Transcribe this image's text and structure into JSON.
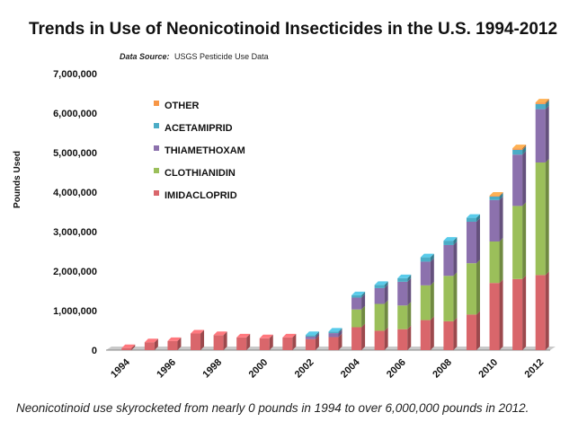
{
  "chart_data": {
    "type": "bar",
    "stacked": true,
    "title": "Trends in Use of Neonicotinoid Insecticides in the U.S. 1994-2012",
    "source_label": "Data Source:",
    "source_text": "USGS Pesticide Use Data",
    "ylabel": "Pounds Used",
    "ylim": [
      0,
      7000000
    ],
    "yticks": [
      0,
      1000000,
      2000000,
      3000000,
      4000000,
      5000000,
      6000000,
      7000000
    ],
    "ytick_labels": [
      "0",
      "1,000,000",
      "2,000,000",
      "3,000,000",
      "4,000,000",
      "5,000,000",
      "6,000,000",
      "7,000,000"
    ],
    "categories": [
      "1994",
      "1995",
      "1996",
      "1997",
      "1998",
      "1999",
      "2000",
      "2001",
      "2002",
      "2003",
      "2004",
      "2005",
      "2006",
      "2007",
      "2008",
      "2009",
      "2010",
      "2011",
      "2012"
    ],
    "xtick_labels": [
      "1994",
      "",
      "1996",
      "",
      "1998",
      "",
      "2000",
      "",
      "2002",
      "",
      "2004",
      "",
      "2006",
      "",
      "2008",
      "",
      "2010",
      "",
      "2012"
    ],
    "grid": false,
    "legend_placement": "top-left",
    "series": [
      {
        "name": "IMIDACLOPRID",
        "color": "#d9666b",
        "values": [
          50000,
          200000,
          230000,
          420000,
          380000,
          320000,
          300000,
          320000,
          280000,
          330000,
          580000,
          490000,
          530000,
          760000,
          730000,
          900000,
          1700000,
          1800000,
          1900000
        ]
      },
      {
        "name": "CLOTHIANIDIN",
        "color": "#9bbf5a",
        "values": [
          0,
          0,
          0,
          0,
          0,
          0,
          0,
          0,
          0,
          0,
          450000,
          680000,
          600000,
          880000,
          1150000,
          1300000,
          1050000,
          1850000,
          2850000
        ]
      },
      {
        "name": "THIAMETHOXAM",
        "color": "#8c71ad",
        "values": [
          0,
          0,
          0,
          0,
          0,
          0,
          0,
          0,
          60000,
          100000,
          300000,
          400000,
          600000,
          600000,
          780000,
          1050000,
          1050000,
          1300000,
          1350000
        ]
      },
      {
        "name": "ACETAMIPRID",
        "color": "#4bacc6",
        "values": [
          0,
          0,
          0,
          0,
          0,
          0,
          0,
          0,
          40000,
          40000,
          60000,
          80000,
          90000,
          110000,
          110000,
          100000,
          90000,
          120000,
          130000
        ]
      },
      {
        "name": "OTHER",
        "color": "#f79646",
        "values": [
          0,
          0,
          0,
          0,
          0,
          0,
          0,
          0,
          0,
          0,
          0,
          0,
          0,
          0,
          0,
          0,
          20000,
          40000,
          40000
        ]
      }
    ]
  },
  "caption": "Neonicotinoid use skyrocketed from nearly 0 pounds in 1994 to over 6,000,000 pounds in 2012."
}
